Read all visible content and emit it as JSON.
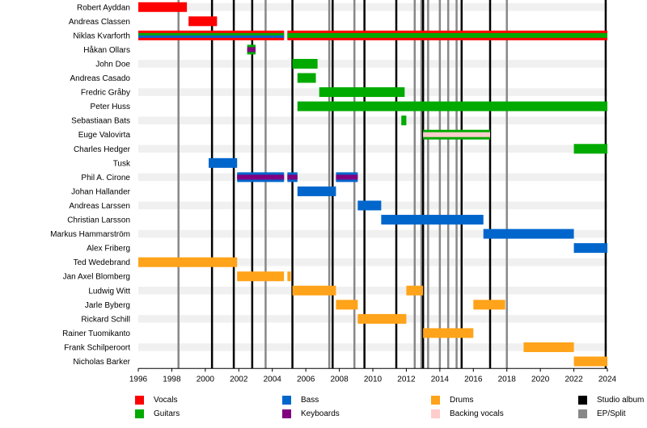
{
  "chart_data": {
    "type": "timeline",
    "x_axis": {
      "min": 1996,
      "max": 2024,
      "ticks": [
        1996,
        1998,
        2000,
        2002,
        2004,
        2006,
        2008,
        2010,
        2012,
        2014,
        2016,
        2018,
        2020,
        2022,
        2024
      ]
    },
    "roles": {
      "vocals": "#ff0000",
      "guitars": "#00aa00",
      "bass": "#0066cc",
      "drums": "#ffa31a",
      "keyboards": "#800080",
      "backing": "#ffcccc"
    },
    "members": [
      {
        "name": "Robert Ayddan",
        "bars": [
          {
            "start": 1996.0,
            "end": 1998.9,
            "role": "vocals"
          }
        ]
      },
      {
        "name": "Andreas Classen",
        "bars": [
          {
            "start": 1999.0,
            "end": 2000.7,
            "role": "vocals"
          }
        ]
      },
      {
        "name": "Niklas Kvarforth",
        "bars": [
          {
            "start": 1996.0,
            "end": 2004.7,
            "role": "vocals",
            "secondary": [
              "guitars",
              "bass"
            ]
          },
          {
            "start": 2004.9,
            "end": 2024.0,
            "role": "vocals",
            "secondary": [
              "guitars"
            ]
          }
        ]
      },
      {
        "name": "Håkan Ollars",
        "bars": [
          {
            "start": 2002.5,
            "end": 2003.0,
            "role": "guitars",
            "secondary": [
              "keyboards"
            ]
          }
        ]
      },
      {
        "name": "John Doe",
        "bars": [
          {
            "start": 2005.2,
            "end": 2006.7,
            "role": "guitars"
          }
        ]
      },
      {
        "name": "Andreas Casado",
        "bars": [
          {
            "start": 2005.5,
            "end": 2006.6,
            "role": "guitars"
          }
        ]
      },
      {
        "name": "Fredric Gråby",
        "bars": [
          {
            "start": 2006.8,
            "end": 2011.9,
            "role": "guitars"
          }
        ]
      },
      {
        "name": "Peter Huss",
        "bars": [
          {
            "start": 2005.5,
            "end": 2024.0,
            "role": "guitars"
          }
        ]
      },
      {
        "name": "Sebastiaan Bats",
        "bars": [
          {
            "start": 2011.7,
            "end": 2012.0,
            "role": "guitars"
          }
        ]
      },
      {
        "name": "Euge Valovirta",
        "bars": [
          {
            "start": 2013.0,
            "end": 2017.0,
            "role": "guitars",
            "secondary": [
              "backing"
            ]
          }
        ]
      },
      {
        "name": "Charles Hedger",
        "bars": [
          {
            "start": 2022.0,
            "end": 2024.0,
            "role": "guitars"
          }
        ]
      },
      {
        "name": "Tusk",
        "bars": [
          {
            "start": 2000.2,
            "end": 2001.9,
            "role": "bass"
          }
        ]
      },
      {
        "name": "Phil A. Cirone",
        "bars": [
          {
            "start": 2001.9,
            "end": 2004.7,
            "role": "bass",
            "secondary": [
              "keyboards"
            ]
          },
          {
            "start": 2004.9,
            "end": 2005.5,
            "role": "bass",
            "secondary": [
              "keyboards"
            ]
          },
          {
            "start": 2007.8,
            "end": 2009.1,
            "role": "bass",
            "secondary": [
              "keyboards"
            ]
          }
        ]
      },
      {
        "name": "Johan Hallander",
        "bars": [
          {
            "start": 2005.5,
            "end": 2007.8,
            "role": "bass"
          }
        ]
      },
      {
        "name": "Andreas Larssen",
        "bars": [
          {
            "start": 2009.1,
            "end": 2010.5,
            "role": "bass"
          }
        ]
      },
      {
        "name": "Christian Larsson",
        "bars": [
          {
            "start": 2010.5,
            "end": 2016.6,
            "role": "bass"
          }
        ]
      },
      {
        "name": "Markus Hammarström",
        "bars": [
          {
            "start": 2016.6,
            "end": 2022.0,
            "role": "bass"
          }
        ]
      },
      {
        "name": "Alex Friberg",
        "bars": [
          {
            "start": 2022.0,
            "end": 2024.0,
            "role": "bass"
          }
        ]
      },
      {
        "name": "Ted Wedebrand",
        "bars": [
          {
            "start": 1996.0,
            "end": 2001.9,
            "role": "drums"
          }
        ]
      },
      {
        "name": "Jan Axel Blomberg",
        "bars": [
          {
            "start": 2001.9,
            "end": 2004.7,
            "role": "drums"
          },
          {
            "start": 2004.9,
            "end": 2005.1,
            "role": "drums"
          }
        ]
      },
      {
        "name": "Ludwig Witt",
        "bars": [
          {
            "start": 2005.2,
            "end": 2007.8,
            "role": "drums"
          },
          {
            "start": 2012.0,
            "end": 2013.0,
            "role": "drums"
          }
        ]
      },
      {
        "name": "Jarle Byberg",
        "bars": [
          {
            "start": 2007.8,
            "end": 2009.1,
            "role": "drums"
          },
          {
            "start": 2016.0,
            "end": 2017.9,
            "role": "drums"
          }
        ]
      },
      {
        "name": "Rickard Schill",
        "bars": [
          {
            "start": 2009.1,
            "end": 2012.0,
            "role": "drums"
          }
        ]
      },
      {
        "name": "Rainer Tuomikanto",
        "bars": [
          {
            "start": 2013.0,
            "end": 2016.0,
            "role": "drums"
          }
        ]
      },
      {
        "name": "Frank Schilperoort",
        "bars": [
          {
            "start": 2019.0,
            "end": 2022.0,
            "role": "drums"
          }
        ]
      },
      {
        "name": "Nicholas Barker",
        "bars": [
          {
            "start": 2022.0,
            "end": 2024.0,
            "role": "drums"
          }
        ]
      }
    ],
    "studio_albums": [
      2000.4,
      2001.7,
      2002.8,
      2005.2,
      2007.6,
      2009.5,
      2011.4,
      2013.0,
      2015.3,
      2017.0,
      2023.9
    ],
    "ep_split": [
      1998.4,
      2003.6,
      2007.4,
      2008.9,
      2012.5,
      2012.9,
      2013.3,
      2014.0,
      2014.5,
      2015.0,
      2018.0
    ],
    "legend": [
      {
        "label": "Vocals",
        "color": "#ff0000"
      },
      {
        "label": "Guitars",
        "color": "#00aa00"
      },
      {
        "label": "Bass",
        "color": "#0066cc"
      },
      {
        "label": "Keyboards",
        "color": "#800080"
      },
      {
        "label": "Drums",
        "color": "#ffa31a"
      },
      {
        "label": "Backing vocals",
        "color": "#ffcccc"
      },
      {
        "label": "Studio album",
        "color": "#000000"
      },
      {
        "label": "EP/Split",
        "color": "#888888"
      }
    ]
  }
}
